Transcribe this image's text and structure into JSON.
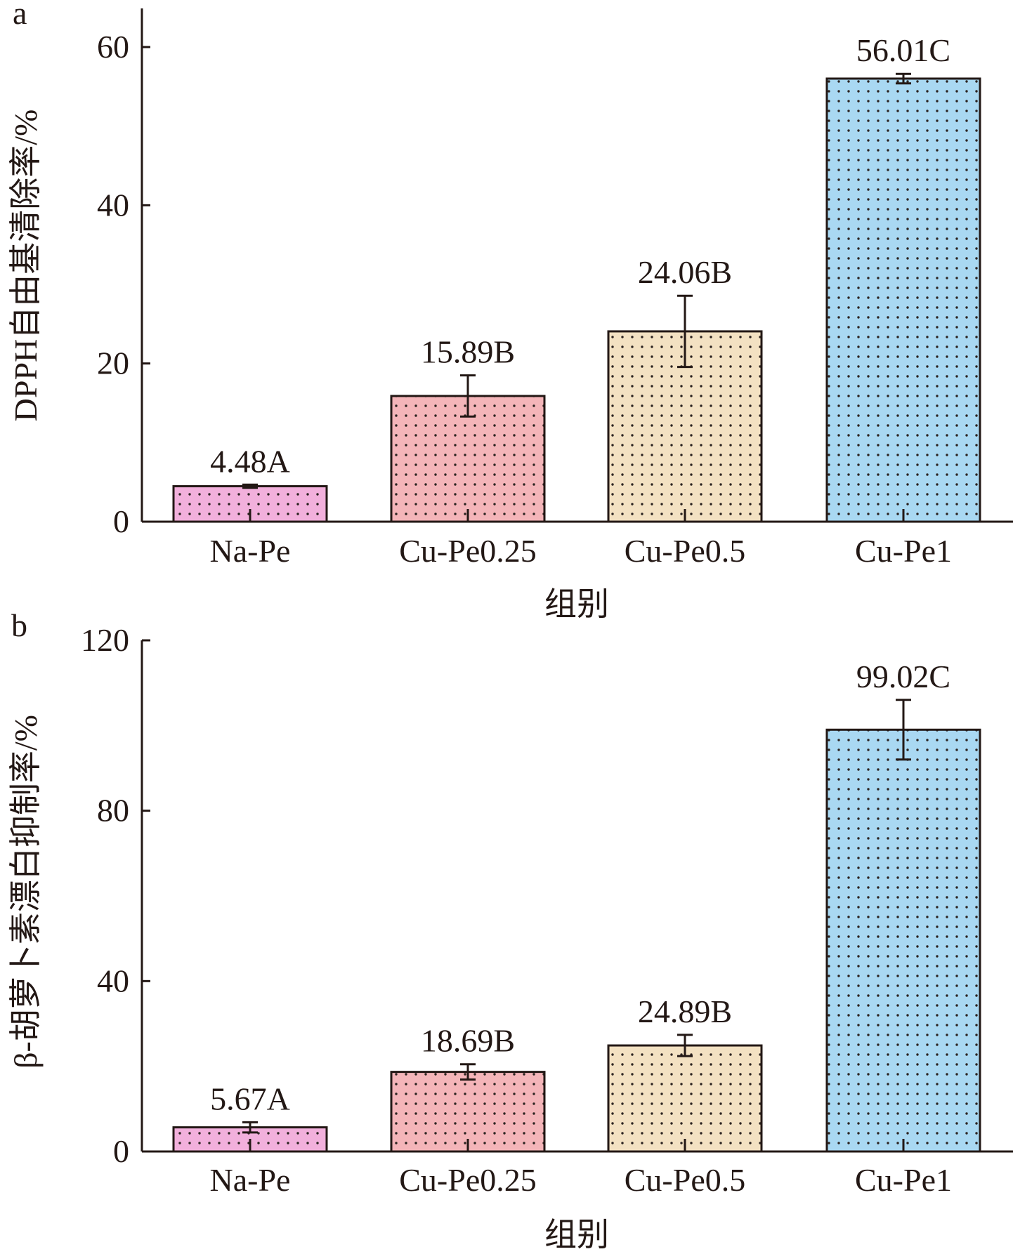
{
  "chart_data": [
    {
      "type": "bar",
      "panel_label": "a",
      "categories": [
        "Na-Pe",
        "Cu-Pe0.25",
        "Cu-Pe0.5",
        "Cu-Pe1"
      ],
      "values": [
        4.48,
        15.89,
        24.06,
        56.01
      ],
      "errors": [
        0.2,
        2.6,
        4.5,
        0.6
      ],
      "value_labels": [
        "4.48A",
        "15.89B",
        "24.06B",
        "56.01C"
      ],
      "xlabel": "组别",
      "ylabel": "DPPH自由基清除率/%",
      "ylim": [
        0,
        65
      ],
      "yticks": [
        0,
        20,
        40,
        60
      ],
      "grid": false,
      "bar_colors": [
        "#f2b0dc",
        "#f4b5b9",
        "#f3e1c2",
        "#a9d8f2"
      ],
      "pattern": "dotted"
    },
    {
      "type": "bar",
      "panel_label": "b",
      "categories": [
        "Na-Pe",
        "Cu-Pe0.25",
        "Cu-Pe0.5",
        "Cu-Pe1"
      ],
      "values": [
        5.67,
        18.69,
        24.89,
        99.02
      ],
      "errors": [
        1.2,
        1.8,
        2.5,
        7.0
      ],
      "value_labels": [
        "5.67A",
        "18.69B",
        "24.89B",
        "99.02C"
      ],
      "xlabel": "组别",
      "ylabel": "β-胡萝卜素漂白抑制率/%",
      "ylim": [
        0,
        120
      ],
      "yticks": [
        0,
        40,
        80,
        120
      ],
      "grid": false,
      "bar_colors": [
        "#f2b0dc",
        "#f4b5b9",
        "#f3e1c2",
        "#a9d8f2"
      ],
      "pattern": "dotted"
    }
  ]
}
